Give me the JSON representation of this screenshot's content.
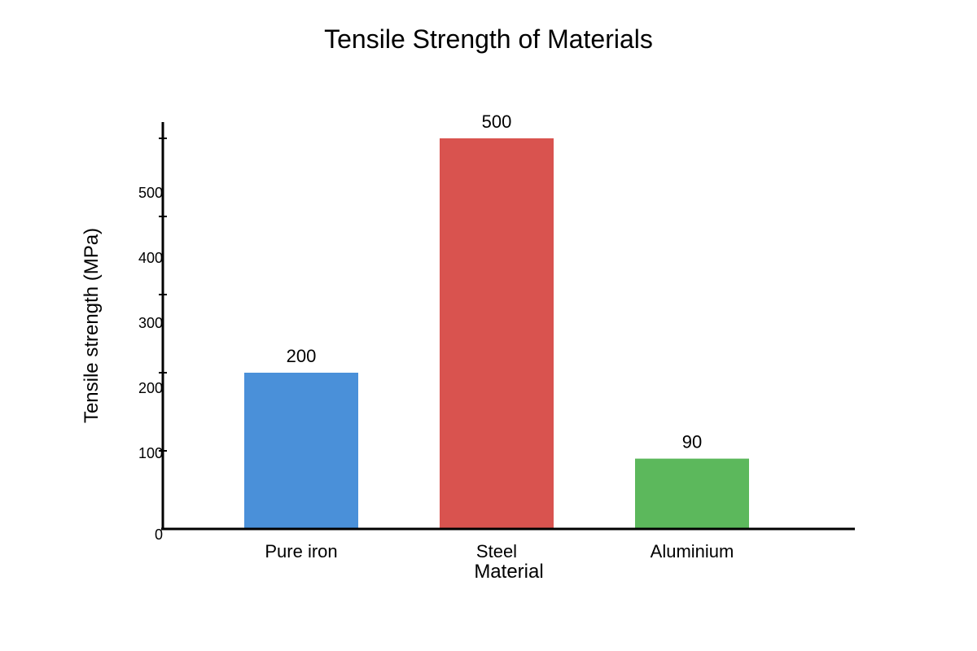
{
  "chart_data": {
    "type": "bar",
    "title": "Tensile Strength of Materials",
    "xlabel": "Material",
    "ylabel": "Tensile strength (MPa)",
    "categories": [
      "Pure iron",
      "Steel",
      "Aluminium"
    ],
    "values": [
      200,
      500,
      90
    ],
    "value_labels": [
      "200",
      "500",
      "90"
    ],
    "colors": [
      "#4a90d9",
      "#d9534f",
      "#5cb85c"
    ],
    "y_ticks": [
      0,
      100,
      200,
      300,
      400,
      500
    ],
    "y_tick_labels": [
      "0",
      "100",
      "200",
      "300",
      "400",
      "500"
    ],
    "grid": false,
    "legend": "none"
  }
}
